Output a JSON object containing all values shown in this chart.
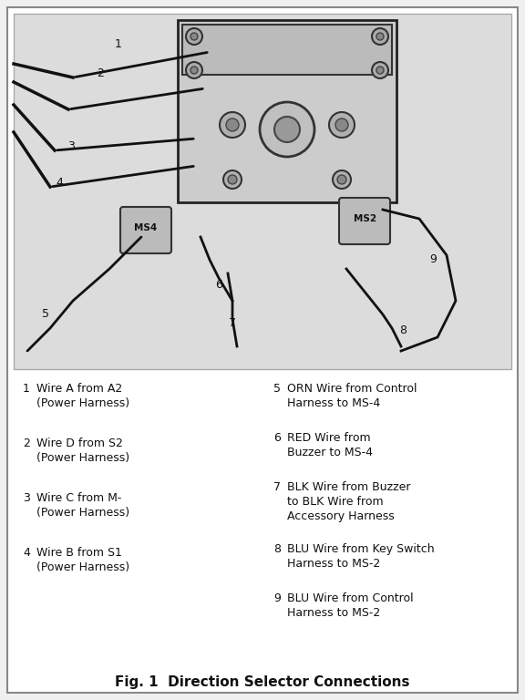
{
  "bg_color": "#f0f0f0",
  "border_color": "#888888",
  "title": "Fig. 1  Direction Selector Connections",
  "title_fontsize": 11,
  "legend_items_left": [
    [
      "1",
      "Wire A from A2\n(Power Harness)"
    ],
    [
      "2",
      "Wire D from S2\n(Power Harness)"
    ],
    [
      "3",
      "Wire C from M-\n(Power Harness)"
    ],
    [
      "4",
      "Wire B from S1\n(Power Harness)"
    ]
  ],
  "legend_items_right": [
    [
      "5",
      "ORN Wire from Control\nHarness to MS-4"
    ],
    [
      "6",
      "RED Wire from\nBuzzer to MS-4"
    ],
    [
      "7",
      "BLK Wire from Buzzer\nto BLK Wire from\nAccessory Harness"
    ],
    [
      "8",
      "BLU Wire from Key Switch\nHarness to MS-2"
    ],
    [
      "9",
      "BLU Wire from Control\nHarness to MS-2"
    ]
  ],
  "diagram_bg": "#e8e8e8",
  "line_color": "#111111",
  "component_color": "#333333",
  "label_color": "#111111"
}
